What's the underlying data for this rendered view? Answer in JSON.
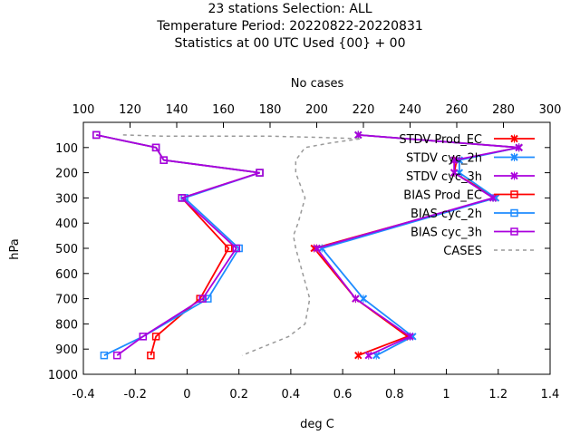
{
  "titles": [
    "23 stations Selection: ALL",
    "Temperature  Period: 20220822-20220831",
    "Statistics at 00 UTC  Used {00} + 00"
  ],
  "chart_data": {
    "type": "line",
    "xlabel": "deg C",
    "ylabel": "hPa",
    "x2label": "No cases",
    "xlim": [
      -0.4,
      1.4
    ],
    "ylim": [
      1000,
      0
    ],
    "x2lim": [
      100,
      300
    ],
    "xticks": [
      "-0.4",
      "-0.2",
      "0",
      "0.2",
      "0.4",
      "0.6",
      "0.8",
      "1",
      "1.2",
      "1.4"
    ],
    "yticks": [
      "100",
      "200",
      "300",
      "400",
      "500",
      "600",
      "700",
      "800",
      "900",
      "1000"
    ],
    "x2ticks": [
      "100",
      "120",
      "140",
      "160",
      "180",
      "200",
      "220",
      "240",
      "260",
      "280",
      "300"
    ],
    "legend_position": "top-right",
    "series": [
      {
        "name": "STDV Prod_EC",
        "color": "#ff0000",
        "marker": "x",
        "axis": "x",
        "points": [
          [
            0.66,
            50
          ],
          [
            1.28,
            100
          ],
          [
            1.04,
            150
          ],
          [
            1.03,
            200
          ],
          [
            1.19,
            300
          ],
          [
            0.49,
            500
          ],
          [
            0.65,
            700
          ],
          [
            0.85,
            850
          ],
          [
            0.66,
            925
          ]
        ]
      },
      {
        "name": "STDV cyc_2h",
        "color": "#1e8cff",
        "marker": "x",
        "axis": "x",
        "points": [
          [
            0.66,
            50
          ],
          [
            1.28,
            100
          ],
          [
            1.05,
            150
          ],
          [
            1.05,
            200
          ],
          [
            1.19,
            300
          ],
          [
            0.52,
            500
          ],
          [
            0.68,
            700
          ],
          [
            0.87,
            850
          ],
          [
            0.73,
            925
          ]
        ]
      },
      {
        "name": "STDV cyc_3h",
        "color": "#aa00dd",
        "marker": "x",
        "axis": "x",
        "points": [
          [
            0.66,
            50
          ],
          [
            1.28,
            100
          ],
          [
            1.03,
            150
          ],
          [
            1.03,
            200
          ],
          [
            1.18,
            300
          ],
          [
            0.5,
            500
          ],
          [
            0.65,
            700
          ],
          [
            0.86,
            850
          ],
          [
            0.7,
            925
          ]
        ]
      },
      {
        "name": "BIAS Prod_EC",
        "color": "#ff0000",
        "marker": "square",
        "axis": "x",
        "points": [
          [
            -0.35,
            50
          ],
          [
            -0.12,
            100
          ],
          [
            -0.09,
            150
          ],
          [
            0.28,
            200
          ],
          [
            -0.02,
            300
          ],
          [
            0.16,
            500
          ],
          [
            0.05,
            700
          ],
          [
            -0.12,
            850
          ],
          [
            -0.14,
            925
          ]
        ]
      },
      {
        "name": "BIAS cyc_2h",
        "color": "#1e8cff",
        "marker": "square",
        "axis": "x",
        "points": [
          [
            -0.35,
            50
          ],
          [
            -0.12,
            100
          ],
          [
            -0.09,
            150
          ],
          [
            0.28,
            200
          ],
          [
            -0.01,
            300
          ],
          [
            0.2,
            500
          ],
          [
            0.08,
            700
          ],
          [
            -0.17,
            850
          ],
          [
            -0.32,
            925
          ]
        ]
      },
      {
        "name": "BIAS cyc_3h",
        "color": "#aa00dd",
        "marker": "square",
        "axis": "x",
        "points": [
          [
            -0.35,
            50
          ],
          [
            -0.12,
            100
          ],
          [
            -0.09,
            150
          ],
          [
            0.28,
            200
          ],
          [
            -0.02,
            300
          ],
          [
            0.19,
            500
          ],
          [
            0.06,
            700
          ],
          [
            -0.17,
            850
          ],
          [
            -0.27,
            925
          ]
        ]
      },
      {
        "name": "CASES",
        "color": "#999999",
        "marker": "none",
        "dashed": true,
        "axis": "x2",
        "points": [
          [
            117,
            50
          ],
          [
            135,
            55
          ],
          [
            180,
            55
          ],
          [
            202,
            60
          ],
          [
            219,
            65
          ],
          [
            207,
            80
          ],
          [
            195,
            100
          ],
          [
            191,
            150
          ],
          [
            191,
            200
          ],
          [
            195,
            300
          ],
          [
            192,
            400
          ],
          [
            190,
            450
          ],
          [
            191,
            500
          ],
          [
            194,
            600
          ],
          [
            197,
            700
          ],
          [
            195,
            800
          ],
          [
            188,
            850
          ],
          [
            168,
            925
          ]
        ]
      }
    ]
  }
}
